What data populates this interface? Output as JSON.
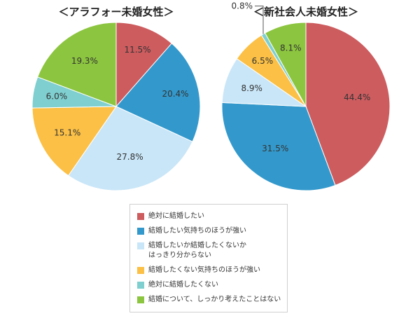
{
  "chart_data": [
    {
      "type": "pie",
      "title": "＜アラフォー未婚女性＞",
      "categories": [
        "絶対に結婚したい",
        "結婚したい気持ちのほうが強い",
        "結婚したいか結婚したくないかはっきり分からない",
        "結婚したくない気持ちのほうが強い",
        "絶対に結婚したくない",
        "結婚について、しっかり考えたことはない"
      ],
      "values": [
        11.5,
        20.4,
        27.8,
        15.1,
        6.0,
        19.3
      ],
      "value_labels": [
        "11.5%",
        "20.4%",
        "27.8%",
        "15.1%",
        "6.0%",
        "19.3%"
      ]
    },
    {
      "type": "pie",
      "title": "＜新社会人未婚女性＞",
      "categories": [
        "絶対に結婚したい",
        "結婚したい気持ちのほうが強い",
        "結婚したいか結婚したくないかはっきり分からない",
        "結婚したくない気持ちのほうが強い",
        "絶対に結婚したくない",
        "結婚について、しっかり考えたことはない"
      ],
      "values": [
        44.4,
        31.5,
        8.9,
        6.5,
        0.8,
        8.1
      ],
      "value_labels": [
        "44.4%",
        "31.5%",
        "8.9%",
        "6.5%",
        "0.8%",
        "8.1%"
      ]
    }
  ],
  "colors": [
    "#cd5c5f",
    "#3399cc",
    "#c9e6f8",
    "#fbc045",
    "#7fcfd0",
    "#8cc53f"
  ],
  "legend": {
    "items": [
      "絶対に結婚したい",
      "結婚したい気持ちのほうが強い",
      "結婚したいか結婚したくないか\nはっきり分からない",
      "結婚したくない気持ちのほうが強い",
      "絶対に結婚したくない",
      "結婚について、しっかり考えたことはない"
    ]
  }
}
